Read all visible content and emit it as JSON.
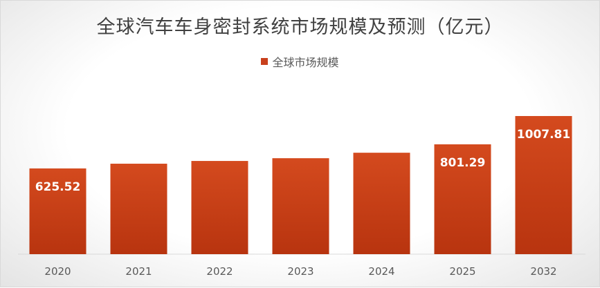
{
  "chart_data": {
    "type": "bar",
    "title": "全球汽车车身密封系统市场规模及预测（亿元）",
    "series_name": "全球市场规模",
    "categories": [
      "2020",
      "2021",
      "2022",
      "2023",
      "2024",
      "2025",
      "2032"
    ],
    "values": [
      625.52,
      660,
      680,
      700,
      740,
      801.29,
      1007.81
    ],
    "data_labels": [
      "625.52",
      "",
      "",
      "",
      "",
      "801.29",
      "1007.81"
    ],
    "legend_position": "top",
    "grid": false,
    "bar_color": "#c8401c",
    "ylim": [
      0,
      1100
    ]
  }
}
